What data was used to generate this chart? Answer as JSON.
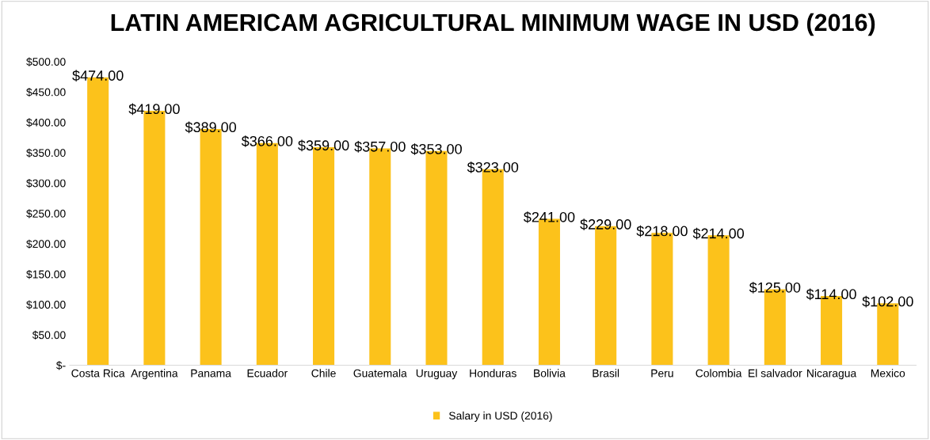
{
  "chart_data": {
    "type": "bar",
    "title": "LATIN AMERICAM AGRICULTURAL MINIMUM WAGE IN USD (2016)",
    "categories": [
      "Costa Rica",
      "Argentina",
      "Panama",
      "Ecuador",
      "Chile",
      "Guatemala",
      "Uruguay",
      "Honduras",
      "Bolivia",
      "Brasil",
      "Peru",
      "Colombia",
      "El salvador",
      "Nicaragua",
      "Mexico"
    ],
    "series": [
      {
        "name": "Salary in USD (2016)",
        "color": "#fcc21b",
        "values": [
          474,
          419,
          389,
          366,
          359,
          357,
          353,
          323,
          241,
          229,
          218,
          214,
          125,
          114,
          102
        ],
        "value_labels": [
          "$474.00",
          "$419.00",
          "$389.00",
          "$366.00",
          "$359.00",
          "$357.00",
          "$353.00",
          "$323.00",
          "$241.00",
          "$229.00",
          "$218.00",
          "$214.00",
          "$125.00",
          "$114.00",
          "$102.00"
        ]
      }
    ],
    "ylim": [
      0,
      500
    ],
    "yticks": [
      {
        "value": 0,
        "label": "$-"
      },
      {
        "value": 50,
        "label": "$50.00"
      },
      {
        "value": 100,
        "label": "$100.00"
      },
      {
        "value": 150,
        "label": "$150.00"
      },
      {
        "value": 200,
        "label": "$200.00"
      },
      {
        "value": 250,
        "label": "$250.00"
      },
      {
        "value": 300,
        "label": "$300.00"
      },
      {
        "value": 350,
        "label": "$350.00"
      },
      {
        "value": 400,
        "label": "$400.00"
      },
      {
        "value": 450,
        "label": "$450.00"
      },
      {
        "value": 500,
        "label": "$500.00"
      }
    ],
    "grid": false,
    "legend": "bottom"
  }
}
